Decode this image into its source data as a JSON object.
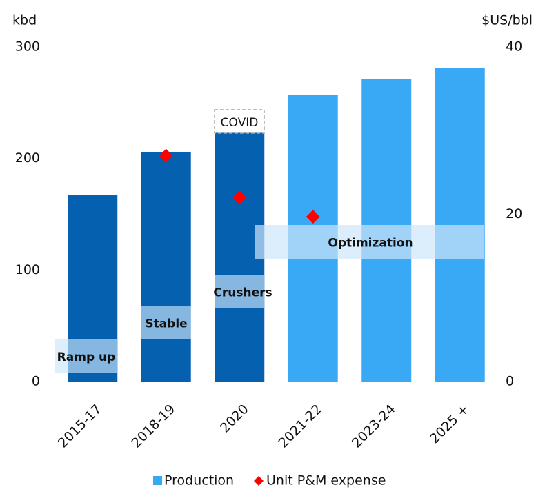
{
  "chart_data": {
    "type": "bar",
    "y_label": "kbd",
    "y2_label": "$US/bbl",
    "categories": [
      "2015-17",
      "2018-19",
      "2020",
      "2021-22",
      "2023-24",
      "2025 +"
    ],
    "series": [
      {
        "name": "Production",
        "color": "#3aa9f5",
        "point_colors": [
          "#0560b0",
          "#0560b0",
          "#0560b0",
          "#3aa9f5",
          "#3aa9f5",
          "#3aa9f5"
        ],
        "values": [
          167,
          206,
          223,
          257,
          271,
          281
        ]
      },
      {
        "name": "Unit P&M expense",
        "color": "#ff0000",
        "axis": "y2",
        "marker": "diamond",
        "values": [
          null,
          27,
          22,
          19.7,
          null,
          null
        ]
      }
    ],
    "ylim": [
      0,
      300
    ],
    "yticks": [
      0,
      100,
      200,
      300
    ],
    "y2lim": [
      0,
      40
    ],
    "y2ticks": [
      0,
      20,
      40
    ],
    "annotations": [
      "Ramp up",
      "Stable",
      "Crushers",
      "Optimization",
      "COVID"
    ],
    "legend": "bottom"
  }
}
